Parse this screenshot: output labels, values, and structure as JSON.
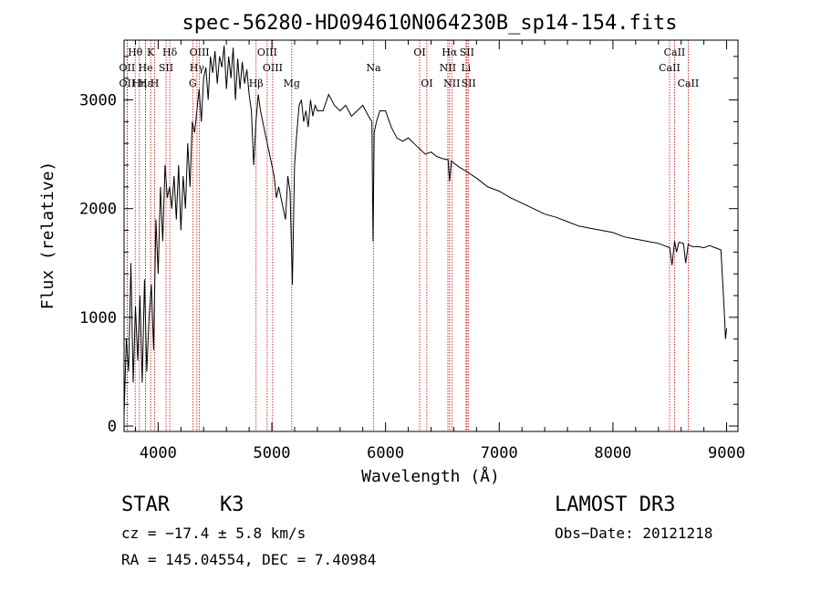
{
  "chart_data": {
    "type": "line",
    "title": "spec-56280-HD094610N064230B_sp14-154.fits",
    "xlabel": "Wavelength (Å)",
    "ylabel": "Flux (relative)",
    "xlim": [
      3700,
      9100
    ],
    "ylim": [
      -50,
      3550
    ],
    "xticks": [
      4000,
      5000,
      6000,
      7000,
      8000,
      9000
    ],
    "yticks": [
      0,
      1000,
      2000,
      3000
    ],
    "grid": false,
    "series": [
      {
        "values_x": [
          3700,
          3720,
          3740,
          3760,
          3780,
          3800,
          3820,
          3840,
          3860,
          3880,
          3900,
          3920,
          3940,
          3960,
          3980,
          4000,
          4020,
          4040,
          4060,
          4080,
          4100,
          4120,
          4140,
          4160,
          4180,
          4200,
          4220,
          4240,
          4260,
          4280,
          4300,
          4320,
          4340,
          4360,
          4380,
          4400,
          4420,
          4440,
          4460,
          4480,
          4500,
          4520,
          4540,
          4560,
          4580,
          4600,
          4620,
          4640,
          4660,
          4680,
          4700,
          4720,
          4740,
          4760,
          4780,
          4800,
          4820,
          4840,
          4860,
          4880,
          4900,
          4920,
          4940,
          4960,
          4980,
          5000,
          5020,
          5040,
          5060,
          5080,
          5100,
          5120,
          5140,
          5160,
          5180,
          5200,
          5220,
          5240,
          5260,
          5280,
          5300,
          5320,
          5340,
          5360,
          5380,
          5400,
          5450,
          5500,
          5550,
          5600,
          5650,
          5700,
          5750,
          5800,
          5850,
          5880,
          5890,
          5900,
          5920,
          5950,
          6000,
          6050,
          6100,
          6150,
          6200,
          6250,
          6300,
          6350,
          6400,
          6450,
          6500,
          6550,
          6563,
          6580,
          6600,
          6650,
          6700,
          6800,
          6900,
          7000,
          7100,
          7200,
          7300,
          7400,
          7500,
          7600,
          7700,
          7800,
          7900,
          8000,
          8100,
          8200,
          8300,
          8400,
          8450,
          8500,
          8520,
          8542,
          8560,
          8580,
          8620,
          8640,
          8662,
          8680,
          8700,
          8750,
          8800,
          8850,
          8900,
          8950,
          8980,
          8990,
          9000
        ],
        "values_y": [
          100,
          800,
          500,
          1500,
          400,
          1100,
          600,
          1200,
          400,
          1350,
          500,
          1000,
          1300,
          700,
          1900,
          1400,
          2200,
          1700,
          2400,
          2100,
          2200,
          2000,
          2300,
          1900,
          2400,
          1800,
          2300,
          2000,
          2600,
          2200,
          2800,
          2700,
          2900,
          3100,
          2800,
          3200,
          3300,
          3000,
          3400,
          3250,
          3450,
          3150,
          3400,
          3300,
          3500,
          3100,
          3400,
          3200,
          3480,
          3000,
          3380,
          3100,
          3350,
          3150,
          3280,
          3050,
          2900,
          2400,
          2800,
          3050,
          2900,
          2800,
          2700,
          2600,
          2500,
          2400,
          2300,
          2100,
          2200,
          2100,
          2000,
          1900,
          2300,
          2150,
          1300,
          2400,
          2700,
          2950,
          3000,
          2800,
          2900,
          2750,
          3000,
          2850,
          2950,
          2900,
          2900,
          3050,
          2950,
          2900,
          2950,
          2850,
          2900,
          2950,
          2850,
          2800,
          1700,
          2700,
          2800,
          2900,
          2900,
          2750,
          2650,
          2620,
          2650,
          2600,
          2550,
          2500,
          2520,
          2480,
          2460,
          2450,
          2250,
          2440,
          2420,
          2380,
          2350,
          2280,
          2200,
          2160,
          2100,
          2050,
          2000,
          1950,
          1920,
          1880,
          1840,
          1820,
          1800,
          1780,
          1740,
          1720,
          1700,
          1680,
          1660,
          1640,
          1480,
          1700,
          1600,
          1690,
          1680,
          1500,
          1670,
          1660,
          1650,
          1650,
          1640,
          1660,
          1640,
          1620,
          1050,
          800,
          900
        ]
      }
    ],
    "lines": [
      {
        "label": "Hθ",
        "x": 3798,
        "row": 1
      },
      {
        "label": "OII",
        "x": 3727,
        "row": 2
      },
      {
        "label": "OII",
        "x": 3727,
        "row": 3
      },
      {
        "label": "Hε",
        "x": 3889,
        "row": 3
      },
      {
        "label": "He",
        "x": 3889,
        "row": 2
      },
      {
        "label": "K",
        "x": 3934,
        "row": 1
      },
      {
        "label": "SII",
        "x": 4069,
        "row": 2
      },
      {
        "label": "Hη",
        "x": 3835,
        "row": 3
      },
      {
        "label": "H",
        "x": 3969,
        "row": 3
      },
      {
        "label": "Hδ",
        "x": 4102,
        "row": 1
      },
      {
        "label": "OIII",
        "x": 4363,
        "row": 1
      },
      {
        "label": "Hγ",
        "x": 4341,
        "row": 2
      },
      {
        "label": "G",
        "x": 4304,
        "row": 3
      },
      {
        "label": "OIII",
        "x": 4959,
        "row": 1
      },
      {
        "label": "OIII",
        "x": 5007,
        "row": 2
      },
      {
        "label": "Hβ",
        "x": 4861,
        "row": 3
      },
      {
        "label": "Mg",
        "x": 5175,
        "row": 3
      },
      {
        "label": "Na",
        "x": 5894,
        "row": 2
      },
      {
        "label": "OI",
        "x": 6300,
        "row": 1
      },
      {
        "label": "OI",
        "x": 6363,
        "row": 3
      },
      {
        "label": "Hα",
        "x": 6563,
        "row": 1
      },
      {
        "label": "SII",
        "x": 6716,
        "row": 1
      },
      {
        "label": "NII",
        "x": 6548,
        "row": 2
      },
      {
        "label": "Li",
        "x": 6708,
        "row": 2
      },
      {
        "label": "NII",
        "x": 6583,
        "row": 3
      },
      {
        "label": "SII",
        "x": 6731,
        "row": 3
      },
      {
        "label": "CaII",
        "x": 8542,
        "row": 1
      },
      {
        "label": "CaII",
        "x": 8498,
        "row": 2
      },
      {
        "label": "CaII",
        "x": 8662,
        "row": 3
      }
    ],
    "line_color": "#cc0000"
  },
  "footer": {
    "object_class": "STAR",
    "subclass": "K3",
    "cz": "cz = −17.4 ± 5.8 km/s",
    "radec": "RA = 145.04554, DEC =    7.40984",
    "survey": "LAMOST DR3",
    "obsdate": "Obs−Date: 20121218"
  }
}
